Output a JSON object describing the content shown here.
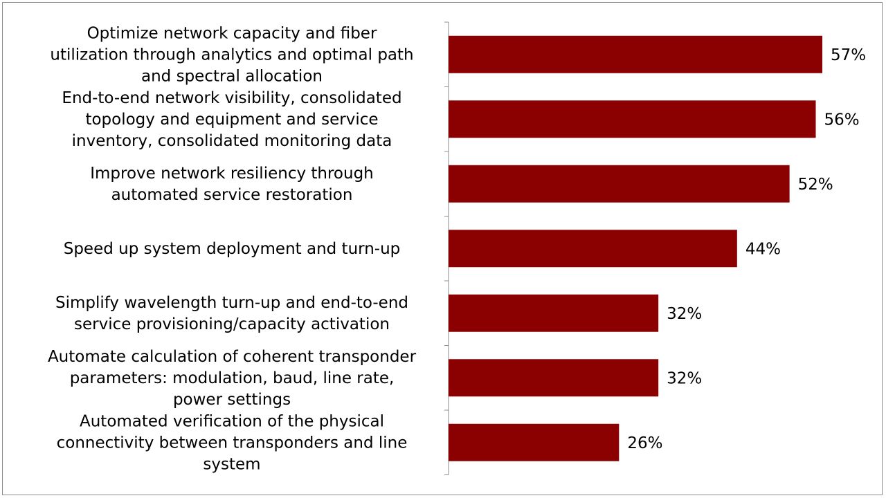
{
  "chart_data": {
    "type": "bar",
    "orientation": "horizontal",
    "title": "",
    "xlabel": "",
    "ylabel": "",
    "xlim": [
      0,
      60
    ],
    "grid": false,
    "legend": "none",
    "bar_color": "#8b0000",
    "categories": [
      "Optimize network capacity and fiber utilization through analytics and optimal path and spectral allocation",
      "End-to-end network visibility, consolidated topology and equipment and service inventory, consolidated monitoring data",
      "Improve network resiliency through automated service restoration",
      "Speed up system deployment and turn-up",
      "Simplify wavelength turn-up and end-to-end service provisioning/capacity activation",
      "Automate calculation of coherent transponder parameters: modulation, baud, line rate, power settings",
      "Automated verification of the physical connectivity between transponders and line system"
    ],
    "category_lines": [
      [
        "Optimize network capacity and fiber",
        "utilization through analytics and optimal path",
        "and spectral allocation"
      ],
      [
        "End-to-end network visibility, consolidated",
        "topology and equipment and service",
        "inventory, consolidated monitoring data"
      ],
      [
        "Improve network resiliency through",
        "automated service restoration"
      ],
      [
        "Speed up system deployment and turn-up"
      ],
      [
        "Simplify wavelength turn-up and end-to-end",
        "service provisioning/capacity activation"
      ],
      [
        "Automate calculation of coherent transponder",
        "parameters: modulation, baud, line rate,",
        "power settings"
      ],
      [
        "Automated verification of the physical",
        "connectivity between transponders and line",
        "system"
      ]
    ],
    "values": [
      57,
      56,
      52,
      44,
      32,
      32,
      26
    ],
    "value_labels": [
      "57%",
      "56%",
      "52%",
      "44%",
      "32%",
      "32%",
      "26%"
    ],
    "unit": "%"
  }
}
